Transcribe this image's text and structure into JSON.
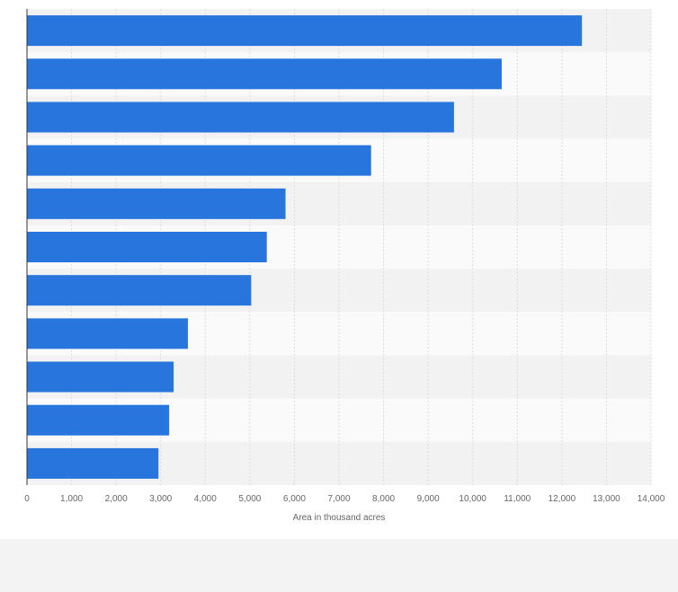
{
  "chart_data": {
    "type": "bar",
    "orientation": "horizontal",
    "categories": [
      "",
      "",
      "",
      "",
      "",
      "",
      "",
      "",
      "",
      "",
      ""
    ],
    "values": [
      12450,
      10650,
      9580,
      7720,
      5800,
      5380,
      5030,
      3610,
      3290,
      3190,
      2950
    ],
    "xlabel": "Area in thousand acres",
    "ylabel": "",
    "xlim": [
      0,
      14000
    ],
    "x_ticks": [
      0,
      1000,
      2000,
      3000,
      4000,
      5000,
      6000,
      7000,
      8000,
      9000,
      10000,
      11000,
      12000,
      13000,
      14000
    ],
    "x_tick_labels": [
      "0",
      "1,000",
      "2,000",
      "3,000",
      "4,000",
      "5,000",
      "6,000",
      "7,000",
      "8,000",
      "9,000",
      "10,000",
      "11,000",
      "12,000",
      "13,000",
      "14,000"
    ],
    "grid": true,
    "legend": "none"
  },
  "colors": {
    "bar": "#2876dd",
    "band_dark": "#f2f2f2",
    "band_light": "#fafafa",
    "grid": "#dcdcdc",
    "axis": "#333333",
    "tick_text": "#666666",
    "background": "#ffffff",
    "footer": "#f3f3f3"
  }
}
